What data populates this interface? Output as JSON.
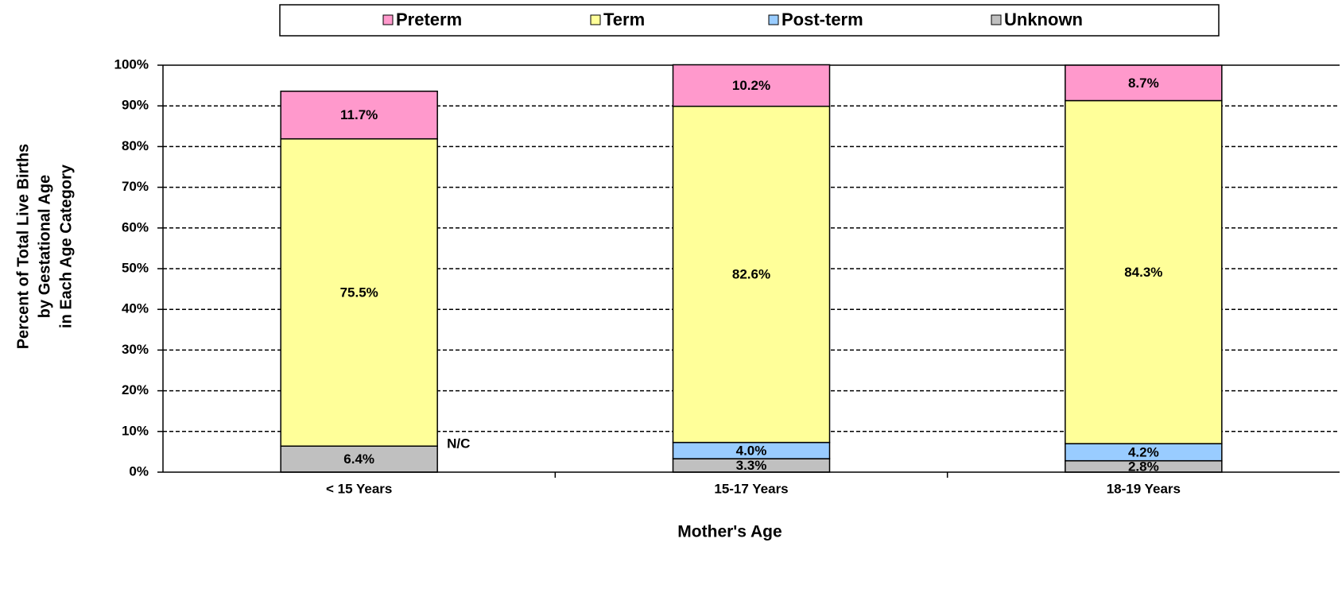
{
  "chart_data": {
    "type": "stacked_bar",
    "x_label": "Mother's Age",
    "y_label": [
      "Percent of Total Live Births",
      "by Gestational Age",
      "in Each Age Category"
    ],
    "categories": [
      "< 15 Years",
      "15-17 Years",
      "18-19 Years"
    ],
    "series": [
      {
        "name": "Unknown",
        "color": "#c0c0c0",
        "values": [
          6.4,
          3.3,
          2.8
        ],
        "value_labels": [
          "6.4%",
          "3.3%",
          "2.8%"
        ]
      },
      {
        "name": "Post-term",
        "color": "#99ccff",
        "values": [
          null,
          4.0,
          4.2
        ],
        "value_labels": [
          "N/C",
          "4.0%",
          "4.2%"
        ]
      },
      {
        "name": "Term",
        "color": "#ffff99",
        "values": [
          75.5,
          82.6,
          84.3
        ],
        "value_labels": [
          "75.5%",
          "82.6%",
          "84.3%"
        ]
      },
      {
        "name": "Preterm",
        "color": "#ff99cc",
        "values": [
          11.7,
          10.2,
          8.7
        ],
        "value_labels": [
          "11.7%",
          "10.2%",
          "8.7%"
        ]
      }
    ],
    "legend_order": [
      3,
      2,
      1,
      0
    ],
    "ylim": [
      0,
      100
    ],
    "yticks": [
      {
        "value": 0,
        "label": "0%"
      },
      {
        "value": 10,
        "label": "10%"
      },
      {
        "value": 20,
        "label": "20%"
      },
      {
        "value": 30,
        "label": "30%"
      },
      {
        "value": 40,
        "label": "40%"
      },
      {
        "value": 50,
        "label": "50%"
      },
      {
        "value": 60,
        "label": "60%"
      },
      {
        "value": 70,
        "label": "70%"
      },
      {
        "value": 80,
        "label": "80%"
      },
      {
        "value": 90,
        "label": "90%"
      },
      {
        "value": 100,
        "label": "100%"
      }
    ],
    "grid": true
  }
}
